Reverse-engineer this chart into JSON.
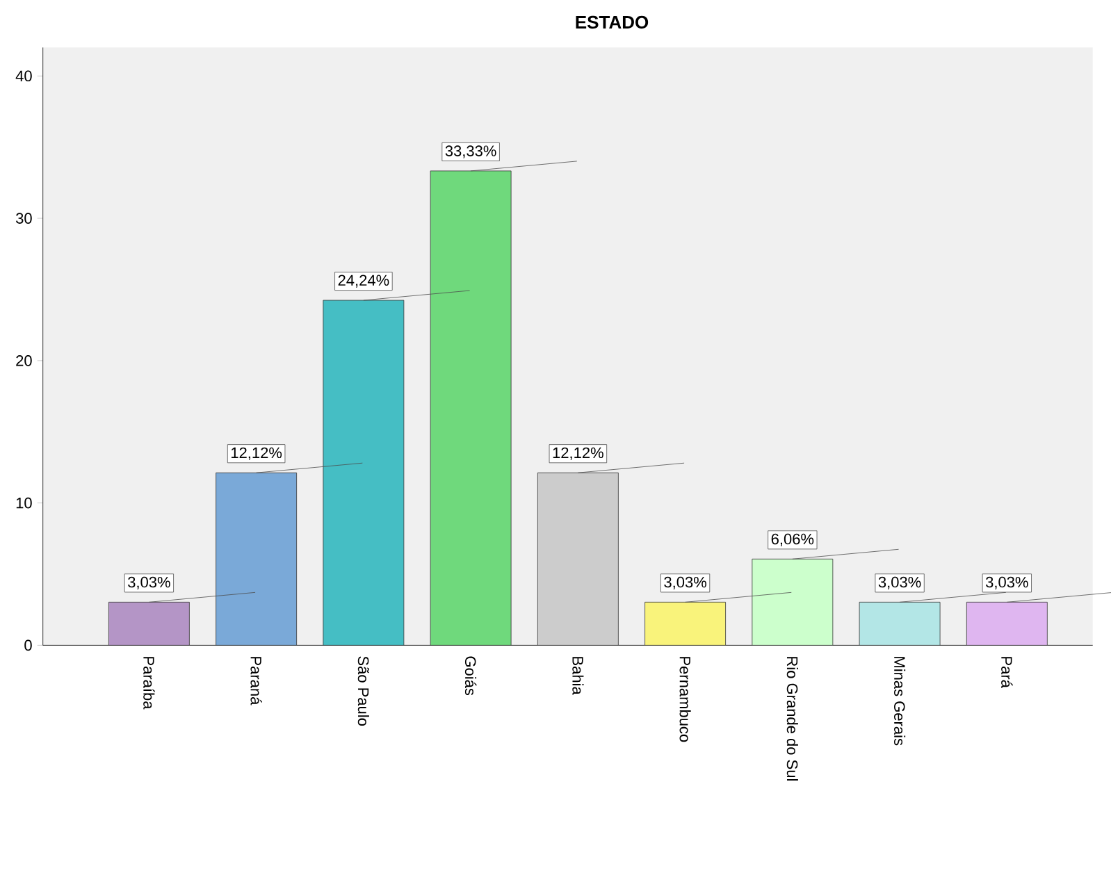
{
  "chart_data": {
    "type": "bar",
    "title": "ESTADO",
    "categories": [
      "Paraíba",
      "Paraná",
      "São Paulo",
      "Goiás",
      "Bahia",
      "Pernambuco",
      "Rio Grande do Sul",
      "Minas Gerais",
      "Pará"
    ],
    "values": [
      3.03,
      12.12,
      24.24,
      33.33,
      12.12,
      3.03,
      6.06,
      3.03,
      3.03
    ],
    "value_labels": [
      "3,03%",
      "12,12%",
      "24,24%",
      "33,33%",
      "12,12%",
      "3,03%",
      "6,06%",
      "3,03%",
      "3,03%"
    ],
    "colors": [
      "#b495c6",
      "#7aa9d8",
      "#45bec4",
      "#6fd97c",
      "#cccccc",
      "#f9f37b",
      "#ccffcc",
      "#b3e6e6",
      "#dfb6f0"
    ],
    "ylim": [
      0,
      42
    ],
    "yticks": [
      0,
      10,
      20,
      30,
      40
    ]
  }
}
